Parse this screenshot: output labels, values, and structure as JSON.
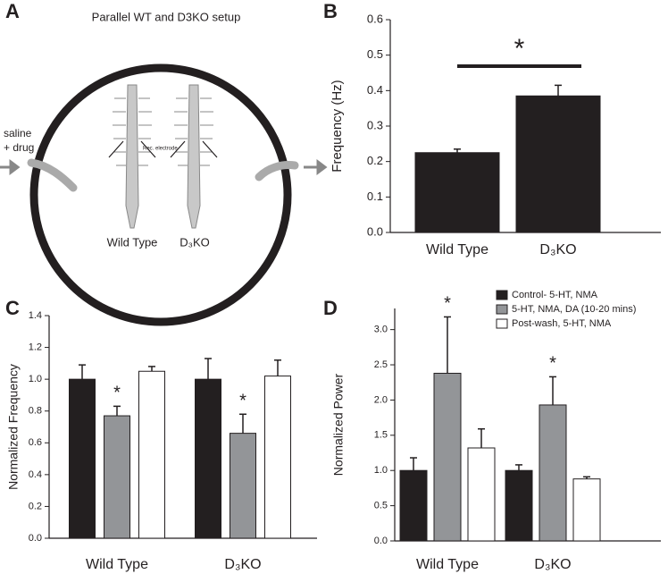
{
  "panel_labels": [
    "A",
    "B",
    "C",
    "D"
  ],
  "setup": {
    "title": "Parallel WT and D3KO setup",
    "inlet": [
      "saline",
      "+ drug"
    ],
    "electrode": "Rec. electrode",
    "preps": [
      "Wild Type",
      "D₃KO"
    ]
  },
  "chart_data": [
    {
      "type": "bar",
      "ylabel": "Frequency (Hz)",
      "categories": [
        "Wild Type",
        "D₃KO"
      ],
      "series": [
        {
          "color": "#231f20",
          "values": [
            0.225,
            0.385
          ],
          "errors": [
            0.01,
            0.03
          ]
        }
      ],
      "ylim": [
        0,
        0.6
      ],
      "yticks": [
        {
          "value": 0,
          "label": "0.0"
        },
        0.1,
        0.2,
        0.3,
        0.4,
        0.5,
        0.6
      ],
      "annotation": "*"
    },
    {
      "type": "bar",
      "ylabel": "Normalized Frequency",
      "categories": [
        "Wild Type",
        "D₃KO"
      ],
      "series": [
        {
          "color": "#231f20",
          "values": [
            1.0,
            1.0
          ],
          "errors": [
            0.09,
            0.13
          ]
        },
        {
          "color": "#939598",
          "values": [
            0.77,
            0.66
          ],
          "errors": [
            0.06,
            0.12
          ],
          "annotations": [
            "*",
            "*"
          ]
        },
        {
          "color": "#ffffff",
          "values": [
            1.05,
            1.02
          ],
          "errors": [
            0.03,
            0.1
          ]
        }
      ],
      "ylim": [
        0,
        1.4
      ],
      "yticks": [
        {
          "value": 0,
          "label": "0.0"
        },
        0.2,
        0.4,
        0.6,
        0.8,
        {
          "value": 1,
          "label": "1.0"
        },
        1.2,
        1.4
      ]
    },
    {
      "type": "bar",
      "ylabel": "Normalized Power",
      "categories": [
        "Wild Type",
        "D₃KO"
      ],
      "series": [
        {
          "name": "Control- 5-HT, NMA",
          "color": "#231f20",
          "values": [
            1.0,
            1.0
          ],
          "errors": [
            0.18,
            0.08
          ]
        },
        {
          "name": "5-HT, NMA, DA (10-20 mins)",
          "color": "#939598",
          "values": [
            2.38,
            1.93
          ],
          "errors": [
            0.8,
            0.4
          ],
          "annotations": [
            "*",
            "*"
          ]
        },
        {
          "name": "Post-wash, 5-HT, NMA",
          "color": "#ffffff",
          "values": [
            1.32,
            0.88
          ],
          "errors": [
            0.27,
            0.03
          ]
        }
      ],
      "ylim": [
        0,
        3.3
      ],
      "yticks": [
        {
          "value": 0,
          "label": "0.0"
        },
        0.5,
        {
          "value": 1,
          "label": "1.0"
        },
        1.5,
        {
          "value": 2,
          "label": "2.0"
        },
        2.5,
        {
          "value": 3,
          "label": "3.0"
        }
      ],
      "legend": "top-right"
    }
  ]
}
